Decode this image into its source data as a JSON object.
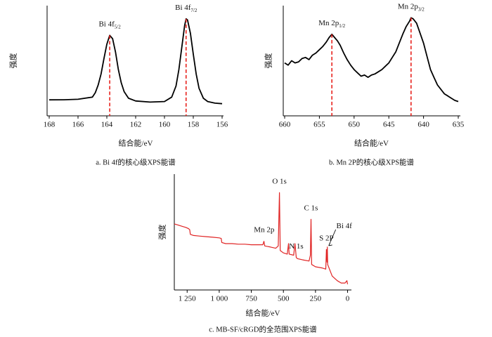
{
  "chart_data": [
    {
      "type": "line",
      "caption": "a.  Bi 4f的核心级XPS能谱",
      "xlabel": "结合能/eV",
      "ylabel": "强度",
      "color": "#000000",
      "marker_color": "#e8211c",
      "xlim": [
        168,
        156
      ],
      "xticks": [
        168,
        166,
        164,
        162,
        160,
        158,
        156
      ],
      "ylim": [
        0,
        100
      ],
      "x": [
        168,
        167,
        166,
        165,
        164.8,
        164.6,
        164.4,
        164.2,
        164,
        163.8,
        163.6,
        163.4,
        163.2,
        163,
        162.8,
        162.5,
        162,
        161,
        160,
        159.5,
        159.2,
        159,
        158.8,
        158.6,
        158.5,
        158.4,
        158.2,
        158,
        157.8,
        157.6,
        157.3,
        157,
        156.5,
        156
      ],
      "values": [
        14.5,
        14.6,
        15,
        17,
        21,
        28,
        38,
        52,
        65,
        73,
        70,
        58,
        42,
        30,
        22,
        16,
        13.5,
        12.5,
        13,
        17,
        27,
        42,
        62,
        82,
        88,
        87,
        75,
        56,
        38,
        25,
        16,
        13,
        11.5,
        11
      ],
      "annotations": [
        {
          "text": "Bi 4f",
          "sub": "5/2",
          "x": 163.8
        },
        {
          "text": "Bi 4f",
          "sub": "7/2",
          "x": 158.5
        }
      ]
    },
    {
      "type": "line",
      "caption": "b.  Mn 2P的核心级XPS能谱",
      "xlabel": "结合能/eV",
      "ylabel": "强度",
      "color": "#000000",
      "marker_color": "#e8211c",
      "xlim": [
        660,
        635
      ],
      "xticks": [
        660,
        655,
        650,
        645,
        640,
        635
      ],
      "ylim": [
        0,
        100
      ],
      "x": [
        660,
        659.5,
        659,
        658.5,
        658,
        657.5,
        657,
        656.5,
        656,
        655.5,
        655,
        654.5,
        654,
        653.6,
        653.2,
        652.8,
        652.4,
        652,
        651.5,
        651,
        650.5,
        650,
        649.5,
        649,
        648.5,
        648,
        647.5,
        647,
        646.5,
        646,
        645.5,
        645,
        644.5,
        644,
        643.5,
        643,
        642.5,
        642,
        641.8,
        641.5,
        641,
        640.5,
        640,
        639.5,
        639,
        638.5,
        638,
        637.5,
        637,
        636.5,
        636,
        635.5,
        635
      ],
      "values": [
        48,
        46,
        50,
        48,
        49,
        52,
        53,
        51,
        55,
        57,
        60,
        63,
        67,
        71,
        74,
        71,
        68,
        64,
        57,
        51,
        46,
        42,
        39,
        36,
        37,
        35,
        37,
        38,
        40,
        42,
        45,
        48,
        53,
        58,
        66,
        74,
        81,
        86,
        89,
        88,
        84,
        75,
        66,
        54,
        42,
        35,
        28,
        24,
        20,
        18,
        16,
        14,
        13
      ],
      "annotations": [
        {
          "text": "Mn 2p",
          "sub": "1/2",
          "x": 653.2
        },
        {
          "text": "Mn 2p",
          "sub": "3/2",
          "x": 641.8
        }
      ]
    },
    {
      "type": "line",
      "caption": "c.  MB-SF/cRGD的全范围XPS能谱",
      "xlabel": "结合能/eV",
      "ylabel": "强度",
      "color": "#e02424",
      "xlim": [
        1350,
        -30
      ],
      "xticks": [
        {
          "value": 1250,
          "label": "1 250"
        },
        {
          "value": 1000,
          "label": "1 000"
        },
        750,
        500,
        250,
        0
      ],
      "ylim": [
        0,
        100
      ],
      "x": [
        1350,
        1320,
        1290,
        1260,
        1240,
        1230,
        1225,
        1200,
        1150,
        1100,
        1050,
        1000,
        985,
        980,
        950,
        900,
        850,
        800,
        750,
        700,
        660,
        652,
        645,
        600,
        560,
        540,
        531,
        525,
        500,
        470,
        460,
        455,
        420,
        410,
        400,
        390,
        350,
        300,
        290,
        285,
        280,
        250,
        200,
        170,
        165,
        160,
        158,
        155,
        120,
        80,
        50,
        20,
        5,
        0
      ],
      "values": [
        57,
        56,
        55,
        54,
        53,
        52,
        48,
        47,
        46.5,
        46,
        45.5,
        45,
        44.5,
        41,
        40,
        40,
        39.5,
        39.5,
        39,
        39,
        39,
        42,
        38,
        37,
        36,
        38,
        84,
        34,
        32,
        31,
        40,
        31,
        30,
        40,
        28,
        27,
        26,
        25,
        30,
        61,
        22,
        20,
        19,
        18,
        35,
        24,
        37,
        22,
        12,
        8,
        6,
        6,
        8,
        5
      ],
      "annotations": [
        {
          "text": "O 1s",
          "x": 531
        },
        {
          "text": "Mn 2p",
          "x": 650
        },
        {
          "text": "N 1s",
          "x": 400
        },
        {
          "text": "C 1s",
          "x": 285
        },
        {
          "text": "S 2P",
          "x": 165
        },
        {
          "text": "Bi 4f",
          "x": 158
        }
      ]
    }
  ]
}
